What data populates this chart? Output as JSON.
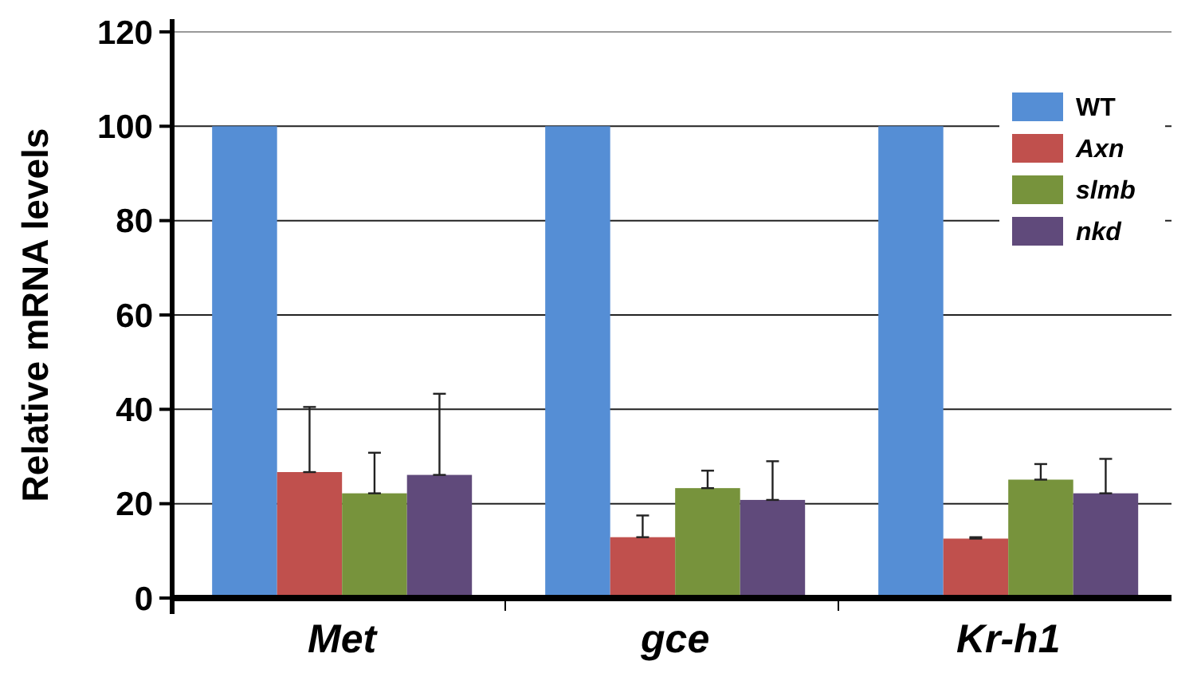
{
  "chart_data": {
    "type": "bar",
    "ylabel": "Relative mRNA levels",
    "categories": [
      "Met",
      "gce",
      "Kr-h1"
    ],
    "series": [
      {
        "name": "WT",
        "color": "#558ed5",
        "values": [
          100,
          100,
          100
        ]
      },
      {
        "name": "Axn",
        "color": "#c0504d",
        "values": [
          26.7,
          12.9,
          12.6
        ],
        "errors": [
          [
            26.7,
            40.5
          ],
          [
            12.9,
            17.5
          ],
          [
            12.6,
            12.9
          ]
        ]
      },
      {
        "name": "slmb",
        "color": "#77933c",
        "values": [
          22.2,
          23.3,
          25.1
        ],
        "errors": [
          [
            22.2,
            30.8
          ],
          [
            23.3,
            27
          ],
          [
            25.1,
            28.4
          ]
        ]
      },
      {
        "name": "nkd",
        "color": "#604a7b",
        "values": [
          26.1,
          20.8,
          22.2
        ],
        "errors": [
          [
            26.1,
            43.3
          ],
          [
            20.8,
            29
          ],
          [
            22.2,
            29.5
          ]
        ]
      }
    ],
    "ylim": [
      0,
      120
    ],
    "yticks": [
      0,
      20,
      40,
      60,
      80,
      100,
      120
    ],
    "grid": "y",
    "legend": "top right"
  }
}
